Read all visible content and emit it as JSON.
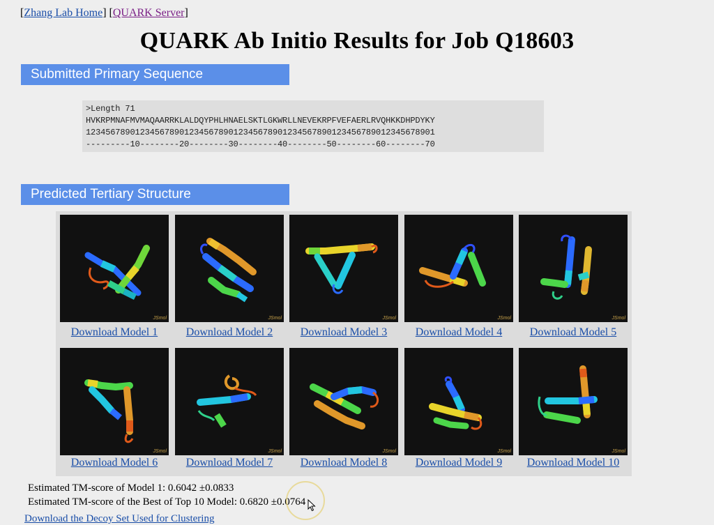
{
  "nav": {
    "home_label": "Zhang Lab Home",
    "server_label": "QUARK Server"
  },
  "page_title": "QUARK Ab Initio Results for Job Q18603",
  "sections": {
    "sequence_header": "Submitted Primary Sequence",
    "structure_header": "Predicted Tertiary Structure"
  },
  "sequence": {
    "header_line": ">Length 71",
    "residues": "HVKRPMNAFMVMAQAARRKLALDQYPHLHNAELSKTLGKWRLLNEVEKRPFVEFAERLRVQHKKDHPDYKY",
    "ruler_digits": "12345678901234567890123456789012345678901234567890123456789012345678901",
    "ruler_ticks": "---------10--------20--------30--------40--------50--------60--------70"
  },
  "models": [
    {
      "label": "Download Model 1",
      "viewer_label": "JSmol"
    },
    {
      "label": "Download Model 2",
      "viewer_label": "JSmol"
    },
    {
      "label": "Download Model 3",
      "viewer_label": "JSmol"
    },
    {
      "label": "Download Model 4",
      "viewer_label": "JSmol"
    },
    {
      "label": "Download Model 5",
      "viewer_label": "JSmol"
    },
    {
      "label": "Download Model 6",
      "viewer_label": "JSmol"
    },
    {
      "label": "Download Model 7",
      "viewer_label": "JSmol"
    },
    {
      "label": "Download Model 8",
      "viewer_label": "JSmol"
    },
    {
      "label": "Download Model 9",
      "viewer_label": "JSmol"
    },
    {
      "label": "Download Model 10",
      "viewer_label": "JSmol"
    }
  ],
  "scores": {
    "model1": "Estimated TM-score of Model 1: 0.6042 ±0.0833",
    "best_top10": "Estimated TM-score of the Best of Top 10 Model: 0.6820 ±0.0764"
  },
  "decoy_link": "Download the Decoy Set Used for Clustering",
  "colors": {
    "section_bar": "#5b8fe8",
    "link": "#1a4ea8",
    "visited_link": "#7a1f86",
    "viewer_background": "#111111"
  }
}
